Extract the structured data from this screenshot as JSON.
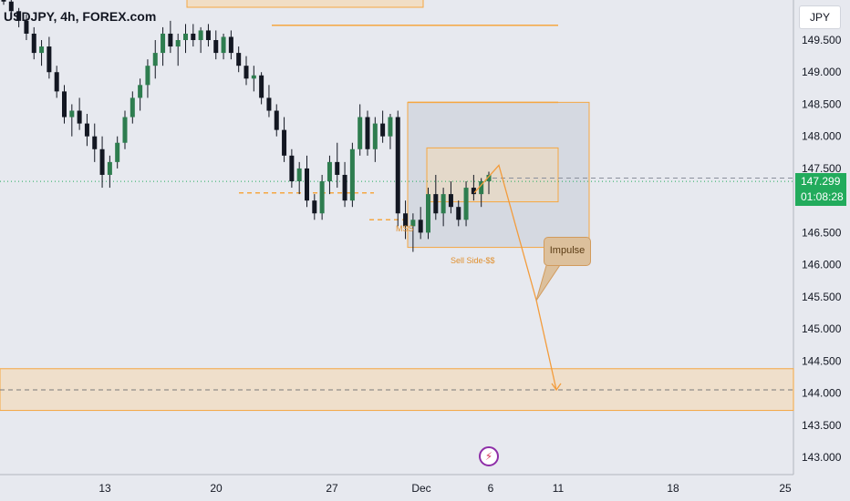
{
  "header": {
    "title": "USDJPY, 4h, FOREX.com"
  },
  "currency_label": "JPY",
  "price_tag": {
    "price": "147.299",
    "countdown": "01:08:28"
  },
  "annotations": {
    "mss": "MSS",
    "sell_side": "Sell Side-$$",
    "impulse": "Impulse"
  },
  "icons": {
    "logo": "tradingview-lightning-icon"
  },
  "colors": {
    "background": "#e7e9ef",
    "bull": "#2e7d4f",
    "bear": "#131722",
    "zone_fill": "#f5d9b3",
    "zone_border": "#f5a742",
    "box_fill": "#cfd3dc",
    "current_price_line": "#22ab5c"
  },
  "chart_data": {
    "type": "candlestick",
    "symbol": "USDJPY",
    "timeframe": "4h",
    "exchange": "FOREX.com",
    "y_axis": {
      "ticks": [
        "149.500",
        "149.000",
        "148.500",
        "148.000",
        "147.500",
        "147.000",
        "146.500",
        "146.000",
        "145.500",
        "145.000",
        "144.500",
        "144.000",
        "143.500",
        "143.000"
      ],
      "range": [
        142.8,
        150.2
      ]
    },
    "x_axis": {
      "ticks": [
        "13",
        "20",
        "27",
        "Dec",
        "6",
        "11",
        "18",
        "25"
      ]
    },
    "current_price": 147.299,
    "ohlc": [
      [
        150.15,
        150.2,
        150.05,
        150.1
      ],
      [
        150.1,
        150.15,
        149.9,
        149.95
      ],
      [
        149.95,
        150.0,
        149.7,
        149.8
      ],
      [
        149.8,
        149.9,
        149.5,
        149.6
      ],
      [
        149.6,
        149.7,
        149.2,
        149.3
      ],
      [
        149.3,
        149.5,
        149.1,
        149.4
      ],
      [
        149.4,
        149.55,
        148.9,
        149.0
      ],
      [
        149.0,
        149.1,
        148.6,
        148.7
      ],
      [
        148.7,
        148.8,
        148.2,
        148.3
      ],
      [
        148.3,
        148.5,
        148.0,
        148.4
      ],
      [
        148.4,
        148.6,
        148.1,
        148.2
      ],
      [
        148.2,
        148.35,
        147.85,
        148.0
      ],
      [
        148.0,
        148.2,
        147.6,
        147.8
      ],
      [
        147.8,
        148.0,
        147.2,
        147.4
      ],
      [
        147.4,
        147.7,
        147.2,
        147.6
      ],
      [
        147.6,
        148.0,
        147.5,
        147.9
      ],
      [
        147.9,
        148.4,
        147.8,
        148.3
      ],
      [
        148.3,
        148.7,
        148.2,
        148.6
      ],
      [
        148.6,
        148.9,
        148.4,
        148.8
      ],
      [
        148.8,
        149.2,
        148.6,
        149.1
      ],
      [
        149.1,
        149.5,
        148.9,
        149.3
      ],
      [
        149.3,
        149.7,
        149.1,
        149.6
      ],
      [
        149.6,
        149.8,
        149.3,
        149.4
      ],
      [
        149.4,
        149.6,
        149.1,
        149.5
      ],
      [
        149.5,
        149.75,
        149.3,
        149.6
      ],
      [
        149.6,
        149.75,
        149.4,
        149.5
      ],
      [
        149.5,
        149.7,
        149.3,
        149.65
      ],
      [
        149.65,
        149.75,
        149.4,
        149.5
      ],
      [
        149.5,
        149.65,
        149.2,
        149.3
      ],
      [
        149.3,
        149.6,
        149.2,
        149.55
      ],
      [
        149.55,
        149.65,
        149.2,
        149.3
      ],
      [
        149.3,
        149.4,
        149.0,
        149.1
      ],
      [
        149.1,
        149.25,
        148.8,
        148.9
      ],
      [
        148.9,
        149.1,
        148.7,
        148.95
      ],
      [
        148.95,
        149.0,
        148.5,
        148.6
      ],
      [
        148.6,
        148.8,
        148.3,
        148.4
      ],
      [
        148.4,
        148.5,
        148.0,
        148.1
      ],
      [
        148.1,
        148.3,
        147.6,
        147.7
      ],
      [
        147.7,
        147.8,
        147.2,
        147.3
      ],
      [
        147.3,
        147.6,
        147.1,
        147.5
      ],
      [
        147.5,
        147.7,
        146.9,
        147.0
      ],
      [
        147.0,
        147.1,
        146.7,
        146.8
      ],
      [
        146.8,
        147.4,
        146.7,
        147.3
      ],
      [
        147.3,
        147.7,
        147.1,
        147.6
      ],
      [
        147.6,
        147.9,
        147.2,
        147.4
      ],
      [
        147.4,
        147.6,
        146.9,
        147.0
      ],
      [
        147.0,
        147.9,
        146.9,
        147.8
      ],
      [
        147.8,
        148.5,
        147.7,
        148.3
      ],
      [
        148.3,
        148.4,
        147.7,
        147.8
      ],
      [
        147.8,
        148.3,
        147.6,
        148.2
      ],
      [
        148.2,
        148.4,
        147.9,
        148.0
      ],
      [
        148.0,
        148.35,
        147.8,
        148.3
      ],
      [
        148.3,
        148.4,
        146.6,
        146.8
      ],
      [
        146.8,
        147.0,
        146.4,
        146.6
      ],
      [
        146.6,
        146.8,
        146.2,
        146.7
      ],
      [
        146.7,
        146.9,
        146.4,
        146.5
      ],
      [
        146.5,
        147.2,
        146.4,
        147.1
      ],
      [
        147.1,
        147.4,
        146.7,
        146.8
      ],
      [
        146.8,
        147.2,
        146.6,
        147.1
      ],
      [
        147.1,
        147.3,
        146.8,
        146.9
      ],
      [
        146.9,
        147.0,
        146.6,
        146.7
      ],
      [
        146.7,
        147.3,
        146.6,
        147.2
      ],
      [
        147.2,
        147.4,
        147.0,
        147.1
      ],
      [
        147.1,
        147.35,
        146.9,
        147.3
      ],
      [
        147.3,
        147.45,
        147.1,
        147.4
      ]
    ],
    "levels": [
      {
        "label": "",
        "price": 149.73,
        "kind": "resistance-line"
      },
      {
        "label": "",
        "price": 148.53,
        "kind": "resistance-line"
      },
      {
        "label": "",
        "price": 147.12,
        "kind": "dashed-low"
      },
      {
        "label": "MSS",
        "price": 146.7,
        "kind": "dashed-low"
      },
      {
        "label": "Sell Side-$$",
        "price": 146.27,
        "kind": "liquidity"
      }
    ],
    "zones": [
      {
        "label": "",
        "top": 147.82,
        "bottom": 146.98,
        "kind": "supply-box"
      },
      {
        "label": "",
        "top": 148.53,
        "bottom": 146.27,
        "kind": "range-box"
      },
      {
        "label": "",
        "top": 144.38,
        "bottom": 143.73,
        "kind": "target-zone",
        "mid": 144.05
      }
    ],
    "projection": {
      "label": "Impulse",
      "points": [
        [
          147.12,
          "Dec 4"
        ],
        [
          147.55,
          "Dec 6"
        ],
        [
          145.45,
          "Dec 10"
        ],
        [
          144.05,
          "Dec 11"
        ]
      ]
    }
  }
}
